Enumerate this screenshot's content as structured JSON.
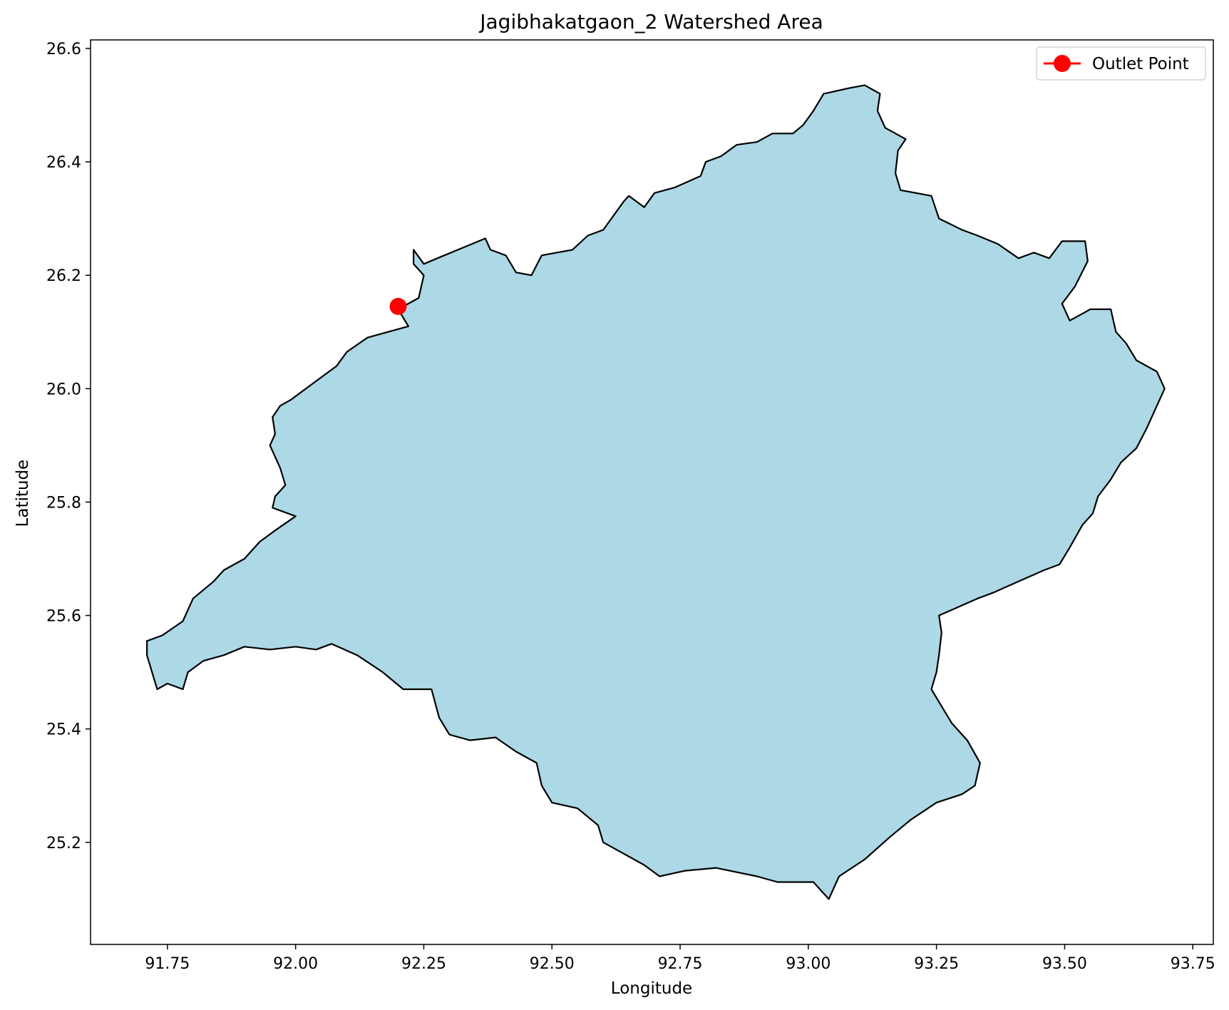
{
  "chart_data": {
    "type": "map",
    "title": "Jagibhakatgaon_2 Watershed Area",
    "xlabel": "Longitude",
    "ylabel": "Latitude",
    "xlim": [
      91.6,
      93.79
    ],
    "ylim": [
      25.02,
      26.615
    ],
    "x_ticks": [
      91.75,
      92.0,
      92.25,
      92.5,
      92.75,
      93.0,
      93.25,
      93.5,
      93.75
    ],
    "x_tick_labels": [
      "91.75",
      "92.00",
      "92.25",
      "92.50",
      "92.75",
      "93.00",
      "93.25",
      "93.50",
      "93.75"
    ],
    "y_ticks": [
      25.2,
      25.4,
      25.6,
      25.8,
      26.0,
      26.2,
      26.4,
      26.6
    ],
    "y_tick_labels": [
      "25.2",
      "25.4",
      "25.6",
      "25.8",
      "26.0",
      "26.2",
      "26.4",
      "26.6"
    ],
    "grid": false,
    "watershed": {
      "fill_color": "#add8e6",
      "edge_color": "#000000",
      "boundary": [
        [
          92.23,
          26.245
        ],
        [
          92.25,
          26.22
        ],
        [
          92.29,
          26.235
        ],
        [
          92.37,
          26.265
        ],
        [
          92.38,
          26.245
        ],
        [
          92.41,
          26.235
        ],
        [
          92.43,
          26.205
        ],
        [
          92.46,
          26.2
        ],
        [
          92.48,
          26.235
        ],
        [
          92.54,
          26.245
        ],
        [
          92.57,
          26.27
        ],
        [
          92.6,
          26.28
        ],
        [
          92.64,
          26.33
        ],
        [
          92.65,
          26.34
        ],
        [
          92.68,
          26.32
        ],
        [
          92.7,
          26.345
        ],
        [
          92.74,
          26.355
        ],
        [
          92.79,
          26.375
        ],
        [
          92.8,
          26.4
        ],
        [
          92.83,
          26.41
        ],
        [
          92.86,
          26.43
        ],
        [
          92.9,
          26.435
        ],
        [
          92.93,
          26.45
        ],
        [
          92.97,
          26.45
        ],
        [
          92.99,
          26.465
        ],
        [
          93.01,
          26.49
        ],
        [
          93.03,
          26.52
        ],
        [
          93.08,
          26.53
        ],
        [
          93.11,
          26.535
        ],
        [
          93.14,
          26.52
        ],
        [
          93.135,
          26.49
        ],
        [
          93.15,
          26.46
        ],
        [
          93.19,
          26.44
        ],
        [
          93.175,
          26.42
        ],
        [
          93.17,
          26.38
        ],
        [
          93.18,
          26.35
        ],
        [
          93.24,
          26.34
        ],
        [
          93.255,
          26.3
        ],
        [
          93.3,
          26.28
        ],
        [
          93.33,
          26.27
        ],
        [
          93.37,
          26.255
        ],
        [
          93.41,
          26.23
        ],
        [
          93.44,
          26.24
        ],
        [
          93.47,
          26.23
        ],
        [
          93.495,
          26.26
        ],
        [
          93.54,
          26.26
        ],
        [
          93.545,
          26.225
        ],
        [
          93.52,
          26.18
        ],
        [
          93.495,
          26.15
        ],
        [
          93.51,
          26.12
        ],
        [
          93.55,
          26.14
        ],
        [
          93.59,
          26.14
        ],
        [
          93.6,
          26.1
        ],
        [
          93.62,
          26.08
        ],
        [
          93.64,
          26.05
        ],
        [
          93.68,
          26.03
        ],
        [
          93.695,
          26.0
        ],
        [
          93.68,
          25.97
        ],
        [
          93.66,
          25.93
        ],
        [
          93.64,
          25.895
        ],
        [
          93.61,
          25.87
        ],
        [
          93.59,
          25.84
        ],
        [
          93.565,
          25.81
        ],
        [
          93.555,
          25.78
        ],
        [
          93.535,
          25.76
        ],
        [
          93.51,
          25.72
        ],
        [
          93.49,
          25.69
        ],
        [
          93.46,
          25.68
        ],
        [
          93.41,
          25.66
        ],
        [
          93.36,
          25.64
        ],
        [
          93.33,
          25.63
        ],
        [
          93.28,
          25.61
        ],
        [
          93.255,
          25.6
        ],
        [
          93.26,
          25.57
        ],
        [
          93.255,
          25.53
        ],
        [
          93.25,
          25.5
        ],
        [
          93.24,
          25.47
        ],
        [
          93.26,
          25.44
        ],
        [
          93.28,
          25.41
        ],
        [
          93.31,
          25.38
        ],
        [
          93.335,
          25.34
        ],
        [
          93.325,
          25.3
        ],
        [
          93.3,
          25.285
        ],
        [
          93.25,
          25.27
        ],
        [
          93.2,
          25.24
        ],
        [
          93.16,
          25.21
        ],
        [
          93.11,
          25.17
        ],
        [
          93.06,
          25.14
        ],
        [
          93.04,
          25.1
        ],
        [
          93.01,
          25.13
        ],
        [
          92.94,
          25.13
        ],
        [
          92.9,
          25.14
        ],
        [
          92.82,
          25.155
        ],
        [
          92.76,
          25.15
        ],
        [
          92.71,
          25.14
        ],
        [
          92.68,
          25.16
        ],
        [
          92.64,
          25.18
        ],
        [
          92.6,
          25.2
        ],
        [
          92.59,
          25.23
        ],
        [
          92.55,
          25.26
        ],
        [
          92.5,
          25.27
        ],
        [
          92.48,
          25.3
        ],
        [
          92.47,
          25.34
        ],
        [
          92.43,
          25.36
        ],
        [
          92.39,
          25.385
        ],
        [
          92.34,
          25.38
        ],
        [
          92.3,
          25.39
        ],
        [
          92.28,
          25.42
        ],
        [
          92.265,
          25.47
        ],
        [
          92.21,
          25.47
        ],
        [
          92.17,
          25.5
        ],
        [
          92.12,
          25.53
        ],
        [
          92.07,
          25.55
        ],
        [
          92.04,
          25.54
        ],
        [
          92.0,
          25.545
        ],
        [
          91.95,
          25.54
        ],
        [
          91.9,
          25.545
        ],
        [
          91.86,
          25.53
        ],
        [
          91.82,
          25.52
        ],
        [
          91.79,
          25.5
        ],
        [
          91.78,
          25.47
        ],
        [
          91.75,
          25.48
        ],
        [
          91.73,
          25.47
        ],
        [
          91.72,
          25.5
        ],
        [
          91.71,
          25.53
        ],
        [
          91.71,
          25.555
        ],
        [
          91.74,
          25.565
        ],
        [
          91.78,
          25.59
        ],
        [
          91.8,
          25.63
        ],
        [
          91.84,
          25.66
        ],
        [
          91.86,
          25.68
        ],
        [
          91.9,
          25.7
        ],
        [
          91.93,
          25.73
        ],
        [
          91.96,
          25.75
        ],
        [
          92.0,
          25.775
        ],
        [
          91.985,
          25.78
        ],
        [
          91.955,
          25.79
        ],
        [
          91.96,
          25.81
        ],
        [
          91.98,
          25.83
        ],
        [
          91.97,
          25.86
        ],
        [
          91.96,
          25.88
        ],
        [
          91.95,
          25.9
        ],
        [
          91.96,
          25.92
        ],
        [
          91.955,
          25.95
        ],
        [
          91.97,
          25.97
        ],
        [
          91.99,
          25.98
        ],
        [
          92.02,
          26.0
        ],
        [
          92.05,
          26.02
        ],
        [
          92.08,
          26.04
        ],
        [
          92.1,
          26.065
        ],
        [
          92.14,
          26.09
        ],
        [
          92.18,
          26.1
        ],
        [
          92.22,
          26.11
        ],
        [
          92.2,
          26.14
        ],
        [
          92.24,
          26.16
        ],
        [
          92.25,
          26.2
        ],
        [
          92.23,
          26.22
        ],
        [
          92.23,
          26.245
        ]
      ]
    },
    "legend": {
      "position": "top-right",
      "entries": [
        {
          "label": "Outlet Point",
          "color": "#ff0000",
          "marker": "circle"
        }
      ]
    },
    "outlet_point": {
      "lon": 92.2,
      "lat": 26.145,
      "color": "#ff0000"
    }
  }
}
